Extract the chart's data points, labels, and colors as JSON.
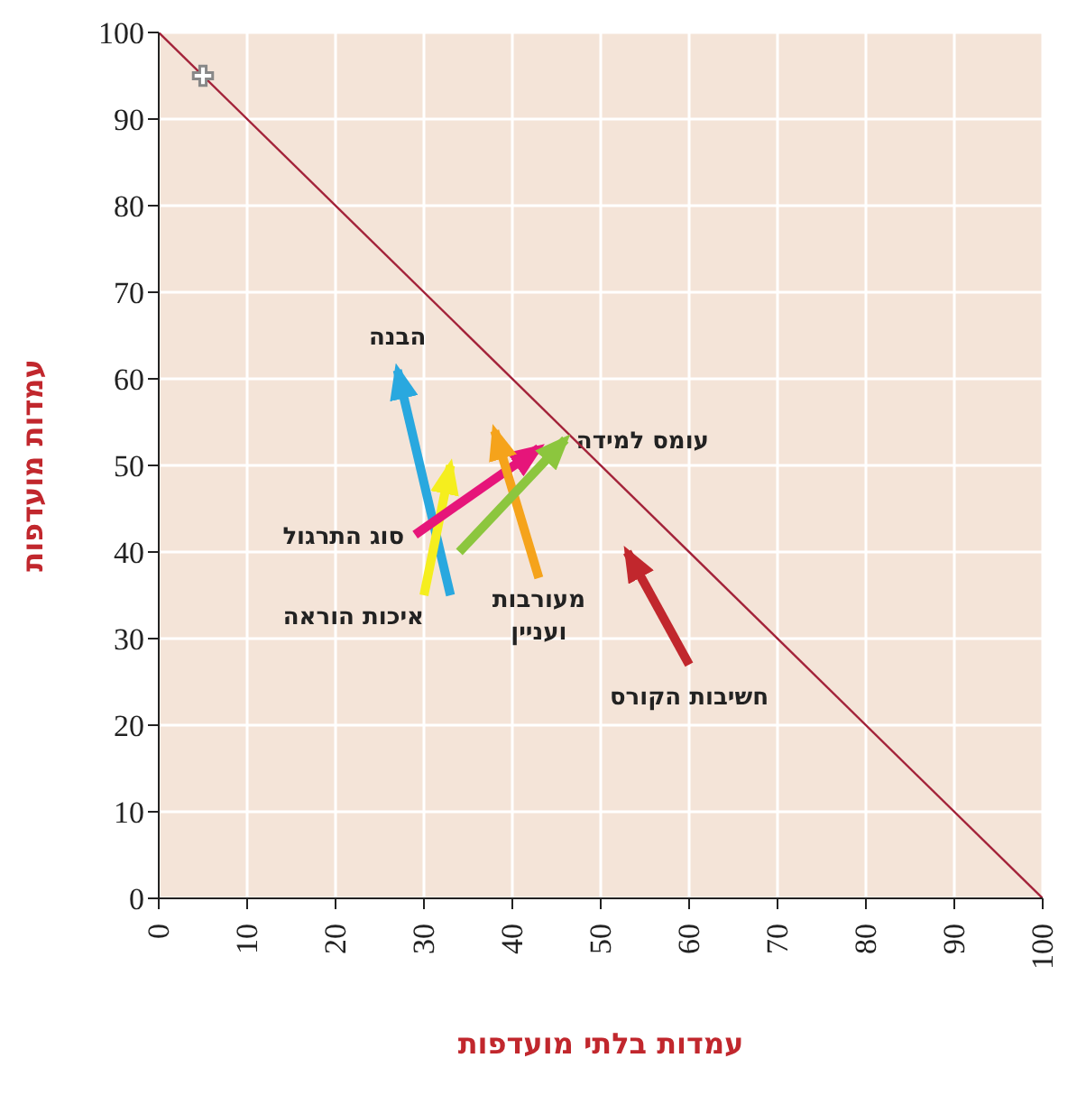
{
  "chart_data": {
    "type": "line",
    "xlabel": "עמדות בלתי מועדפות",
    "ylabel": "עמדות מועדפות",
    "xlim": [
      0,
      100
    ],
    "ylim": [
      0,
      100
    ],
    "xticks": [
      0,
      10,
      20,
      30,
      40,
      50,
      60,
      70,
      80,
      90,
      100
    ],
    "yticks": [
      0,
      10,
      20,
      30,
      40,
      50,
      60,
      70,
      80,
      90,
      100
    ],
    "grid": true,
    "legend": false,
    "series": [
      {
        "color": "#a3233a",
        "x": [
          0,
          100
        ],
        "values": [
          100,
          0
        ]
      },
      {
        "type": "scatter",
        "color": "#ffffff",
        "marker": "cross",
        "x": [
          5
        ],
        "values": [
          95
        ]
      },
      {
        "name": "הבנה",
        "color": "#29a8df",
        "x": [
          33,
          27
        ],
        "values": [
          35,
          61
        ]
      },
      {
        "name": "איכות הוראה",
        "color": "#f5ee1e",
        "x": [
          30,
          33
        ],
        "values": [
          35,
          50
        ]
      },
      {
        "name": "סוג התרגול",
        "color": "#e6157a",
        "x": [
          29,
          43
        ],
        "values": [
          42,
          52
        ]
      },
      {
        "name": "מעורבות ועניין",
        "color": "#f5a31b",
        "x": [
          43,
          38
        ],
        "values": [
          37,
          54
        ]
      },
      {
        "name": "עומס למידה",
        "color": "#8cc63e",
        "x": [
          34,
          46
        ],
        "values": [
          40,
          53
        ]
      },
      {
        "name": "חשיבות הקורס",
        "color": "#c1272d",
        "x": [
          60,
          53
        ],
        "values": [
          27,
          40
        ]
      }
    ]
  }
}
